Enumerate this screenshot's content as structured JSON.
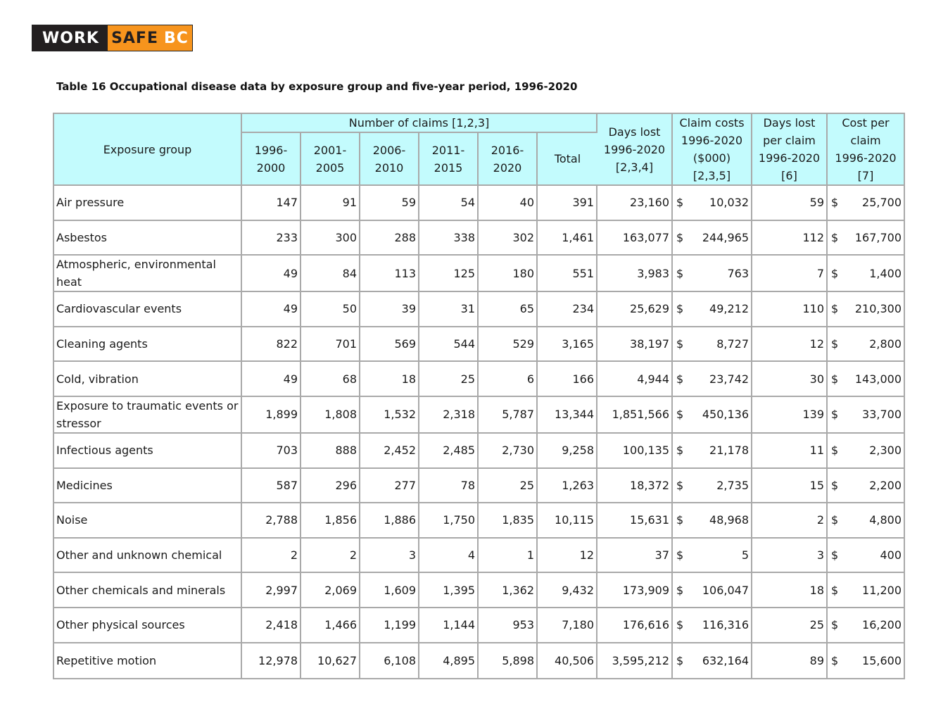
{
  "logo": {
    "work": "WORK",
    "safe": "SAFE",
    "bc": "BC"
  },
  "title": "Table 16 Occupational disease data by exposure group and five-year period, 1996-2020",
  "headers": {
    "exposure_group": "Exposure group",
    "number_of_claims": "Number of claims [1,2,3]",
    "periods": [
      [
        "1996-",
        "2000"
      ],
      [
        "2001-",
        "2005"
      ],
      [
        "2006-",
        "2010"
      ],
      [
        "2011-",
        "2015"
      ],
      [
        "2016-",
        "2020"
      ]
    ],
    "total": "Total",
    "days_lost": [
      "Days lost",
      "1996-2020",
      "[2,3,4]"
    ],
    "claim_costs": [
      "Claim costs",
      "1996-2020",
      "($000)",
      "[2,3,5]"
    ],
    "days_lost_per_claim": [
      "Days lost",
      "per claim",
      "1996-2020",
      "[6]"
    ],
    "cost_per_claim": [
      "Cost per",
      "claim",
      "1996-2020",
      "[7]"
    ]
  },
  "currency_symbol": "$",
  "rows": [
    {
      "group": "Air pressure",
      "p1": "147",
      "p2": "91",
      "p3": "59",
      "p4": "54",
      "p5": "40",
      "total": "391",
      "days_lost": "23,160",
      "claim_costs": "10,032",
      "days_per_claim": "59",
      "cost_per_claim": "25,700"
    },
    {
      "group": "Asbestos",
      "p1": "233",
      "p2": "300",
      "p3": "288",
      "p4": "338",
      "p5": "302",
      "total": "1,461",
      "days_lost": "163,077",
      "claim_costs": "244,965",
      "days_per_claim": "112",
      "cost_per_claim": "167,700"
    },
    {
      "group": "Atmospheric, environmental heat",
      "p1": "49",
      "p2": "84",
      "p3": "113",
      "p4": "125",
      "p5": "180",
      "total": "551",
      "days_lost": "3,983",
      "claim_costs": "763",
      "days_per_claim": "7",
      "cost_per_claim": "1,400"
    },
    {
      "group": "Cardiovascular events",
      "p1": "49",
      "p2": "50",
      "p3": "39",
      "p4": "31",
      "p5": "65",
      "total": "234",
      "days_lost": "25,629",
      "claim_costs": "49,212",
      "days_per_claim": "110",
      "cost_per_claim": "210,300"
    },
    {
      "group": "Cleaning agents",
      "p1": "822",
      "p2": "701",
      "p3": "569",
      "p4": "544",
      "p5": "529",
      "total": "3,165",
      "days_lost": "38,197",
      "claim_costs": "8,727",
      "days_per_claim": "12",
      "cost_per_claim": "2,800"
    },
    {
      "group": "Cold, vibration",
      "p1": "49",
      "p2": "68",
      "p3": "18",
      "p4": "25",
      "p5": "6",
      "total": "166",
      "days_lost": "4,944",
      "claim_costs": "23,742",
      "days_per_claim": "30",
      "cost_per_claim": "143,000"
    },
    {
      "group": "Exposure to traumatic events or stressor",
      "p1": "1,899",
      "p2": "1,808",
      "p3": "1,532",
      "p4": "2,318",
      "p5": "5,787",
      "total": "13,344",
      "days_lost": "1,851,566",
      "claim_costs": "450,136",
      "days_per_claim": "139",
      "cost_per_claim": "33,700"
    },
    {
      "group": "Infectious agents",
      "p1": "703",
      "p2": "888",
      "p3": "2,452",
      "p4": "2,485",
      "p5": "2,730",
      "total": "9,258",
      "days_lost": "100,135",
      "claim_costs": "21,178",
      "days_per_claim": "11",
      "cost_per_claim": "2,300"
    },
    {
      "group": "Medicines",
      "p1": "587",
      "p2": "296",
      "p3": "277",
      "p4": "78",
      "p5": "25",
      "total": "1,263",
      "days_lost": "18,372",
      "claim_costs": "2,735",
      "days_per_claim": "15",
      "cost_per_claim": "2,200"
    },
    {
      "group": "Noise",
      "p1": "2,788",
      "p2": "1,856",
      "p3": "1,886",
      "p4": "1,750",
      "p5": "1,835",
      "total": "10,115",
      "days_lost": "15,631",
      "claim_costs": "48,968",
      "days_per_claim": "2",
      "cost_per_claim": "4,800"
    },
    {
      "group": "Other and unknown chemical",
      "p1": "2",
      "p2": "2",
      "p3": "3",
      "p4": "4",
      "p5": "1",
      "total": "12",
      "days_lost": "37",
      "claim_costs": "5",
      "days_per_claim": "3",
      "cost_per_claim": "400"
    },
    {
      "group": "Other chemicals and minerals",
      "p1": "2,997",
      "p2": "2,069",
      "p3": "1,609",
      "p4": "1,395",
      "p5": "1,362",
      "total": "9,432",
      "days_lost": "173,909",
      "claim_costs": "106,047",
      "days_per_claim": "18",
      "cost_per_claim": "11,200"
    },
    {
      "group": "Other physical sources",
      "p1": "2,418",
      "p2": "1,466",
      "p3": "1,199",
      "p4": "1,144",
      "p5": "953",
      "total": "7,180",
      "days_lost": "176,616",
      "claim_costs": "116,316",
      "days_per_claim": "25",
      "cost_per_claim": "16,200"
    },
    {
      "group": "Repetitive motion",
      "p1": "12,978",
      "p2": "10,627",
      "p3": "6,108",
      "p4": "4,895",
      "p5": "5,898",
      "total": "40,506",
      "days_lost": "3,595,212",
      "claim_costs": "632,164",
      "days_per_claim": "89",
      "cost_per_claim": "15,600"
    }
  ],
  "colors": {
    "header_bg": "#c3fbfd",
    "border": "#a9a9a9",
    "logo_dark": "#231f20",
    "logo_orange": "#f7941d"
  }
}
